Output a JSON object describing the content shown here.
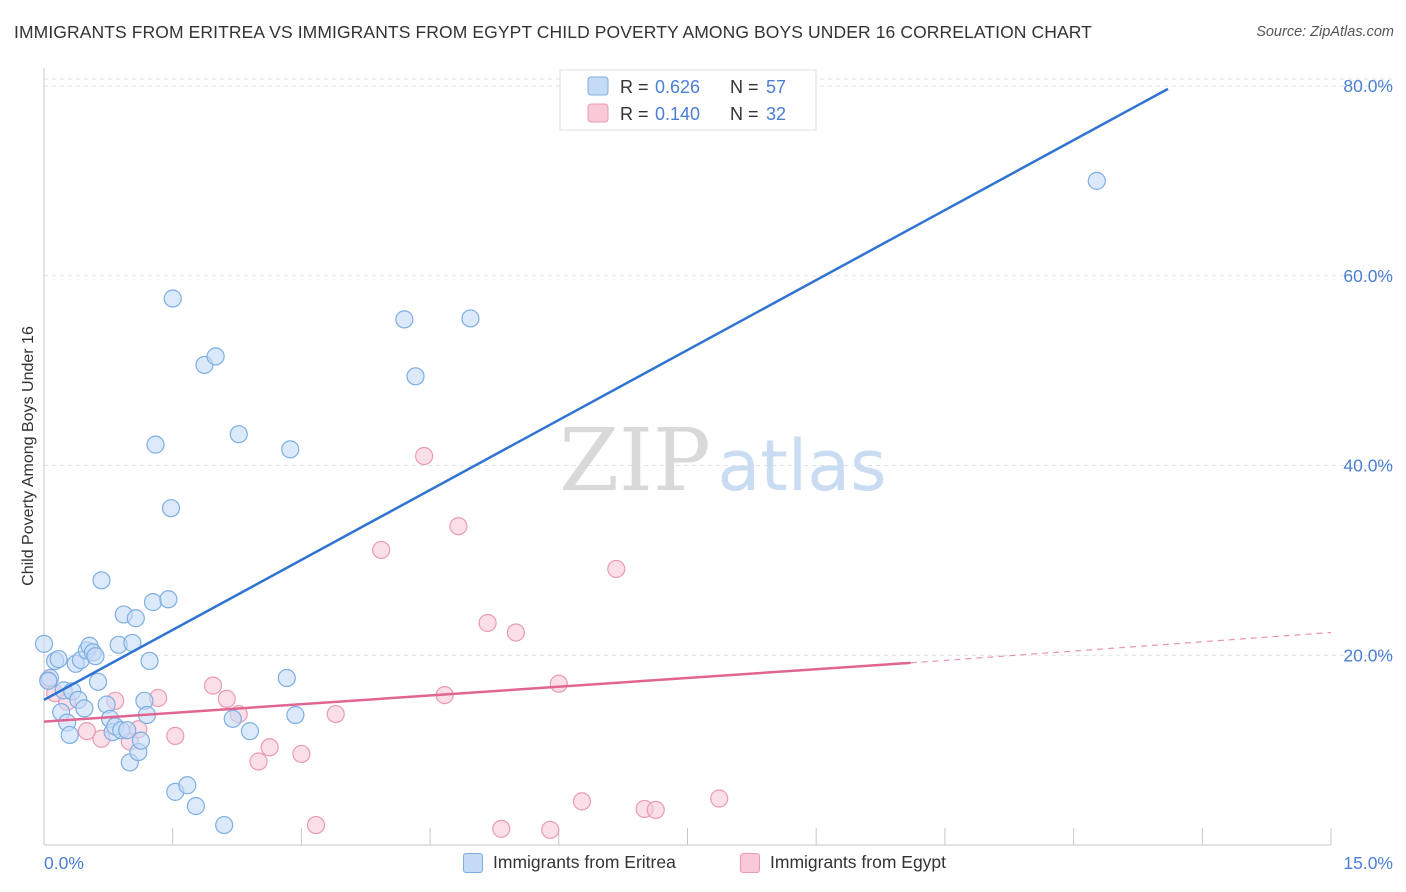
{
  "title": "IMMIGRANTS FROM ERITREA VS IMMIGRANTS FROM EGYPT CHILD POVERTY AMONG BOYS UNDER 16 CORRELATION CHART",
  "source": "Source: ZipAtlas.com",
  "watermark": {
    "zip": "ZIP",
    "atlas": "atlas"
  },
  "colors": {
    "eritrea_fill": "#c5daf6",
    "eritrea_stroke": "#7eaee2",
    "eritrea_line": "#2f74d0",
    "egypt_fill": "#f9c9d8",
    "egypt_stroke": "#e99bb4",
    "egypt_line": "#e06592",
    "value_text": "#4a7fd4",
    "grid": "#dde3ea"
  },
  "legend_top": {
    "rows": [
      {
        "series": "eritrea",
        "r_label": "R =",
        "r_value": "0.626",
        "n_label": "N =",
        "n_value": "57"
      },
      {
        "series": "egypt",
        "r_label": "R =",
        "r_value": "0.140",
        "n_label": "N =",
        "n_value": "32"
      }
    ]
  },
  "legend_bottom": [
    {
      "series": "eritrea",
      "label": "Immigrants from Eritrea"
    },
    {
      "series": "egypt",
      "label": "Immigrants from Egypt"
    }
  ],
  "chart_data": {
    "type": "scatter",
    "title": "IMMIGRANTS FROM ERITREA VS IMMIGRANTS FROM EGYPT CHILD POVERTY AMONG BOYS UNDER 16 CORRELATION CHART",
    "xlabel": "",
    "ylabel": "Child Poverty Among Boys Under 16",
    "xlim": [
      0,
      15
    ],
    "ylim": [
      0,
      80
    ],
    "x_tick_labels": [
      {
        "value": 0,
        "label": "0.0%"
      },
      {
        "value": 15,
        "label": "15.0%"
      }
    ],
    "y_tick_labels": [
      {
        "value": 20,
        "label": "20.0%"
      },
      {
        "value": 40,
        "label": "40.0%"
      },
      {
        "value": 60,
        "label": "60.0%"
      },
      {
        "value": 80,
        "label": "80.0%"
      }
    ],
    "grid": true,
    "series": [
      {
        "name": "Immigrants from Eritrea",
        "key": "eritrea",
        "R": 0.626,
        "N": 57,
        "trend": {
          "x": [
            0.0,
            13.1
          ],
          "y": [
            15.3,
            79.7
          ],
          "dashed_to": null
        },
        "points": [
          [
            0.0,
            21.2
          ],
          [
            0.07,
            17.6
          ],
          [
            0.13,
            19.4
          ],
          [
            0.17,
            19.6
          ],
          [
            0.2,
            14.0
          ],
          [
            0.23,
            16.3
          ],
          [
            0.27,
            12.9
          ],
          [
            0.3,
            11.6
          ],
          [
            0.33,
            16.2
          ],
          [
            0.37,
            19.1
          ],
          [
            0.4,
            15.3
          ],
          [
            0.43,
            19.5
          ],
          [
            0.47,
            14.4
          ],
          [
            0.5,
            20.5
          ],
          [
            0.53,
            21.0
          ],
          [
            0.57,
            20.3
          ],
          [
            0.6,
            19.9
          ],
          [
            0.63,
            17.2
          ],
          [
            0.67,
            27.9
          ],
          [
            0.73,
            14.8
          ],
          [
            0.77,
            13.3
          ],
          [
            0.8,
            11.9
          ],
          [
            0.83,
            12.5
          ],
          [
            0.87,
            21.1
          ],
          [
            0.9,
            12.1
          ],
          [
            0.93,
            24.3
          ],
          [
            0.97,
            12.1
          ],
          [
            1.0,
            8.7
          ],
          [
            1.03,
            21.3
          ],
          [
            1.07,
            23.9
          ],
          [
            1.1,
            9.8
          ],
          [
            1.13,
            11.0
          ],
          [
            1.17,
            15.2
          ],
          [
            1.2,
            13.7
          ],
          [
            1.23,
            19.4
          ],
          [
            1.27,
            25.6
          ],
          [
            1.3,
            42.2
          ],
          [
            1.45,
            25.9
          ],
          [
            1.48,
            35.5
          ],
          [
            1.5,
            57.6
          ],
          [
            1.53,
            5.6
          ],
          [
            1.67,
            6.3
          ],
          [
            1.77,
            4.1
          ],
          [
            1.87,
            50.6
          ],
          [
            2.0,
            51.5
          ],
          [
            2.1,
            2.1
          ],
          [
            2.2,
            13.3
          ],
          [
            2.27,
            43.3
          ],
          [
            2.4,
            12.0
          ],
          [
            2.83,
            17.6
          ],
          [
            2.87,
            41.7
          ],
          [
            2.93,
            13.7
          ],
          [
            4.2,
            55.4
          ],
          [
            4.33,
            49.4
          ],
          [
            4.97,
            55.5
          ],
          [
            12.27,
            70.0
          ],
          [
            0.05,
            17.3
          ]
        ]
      },
      {
        "name": "Immigrants from Egypt",
        "key": "egypt",
        "R": 0.14,
        "N": 32,
        "trend": {
          "x": [
            0.0,
            10.1
          ],
          "y": [
            13.0,
            19.2
          ],
          "dashed_to": [
            15.0,
            22.4
          ]
        },
        "points": [
          [
            0.05,
            17.4
          ],
          [
            0.13,
            16.0
          ],
          [
            0.27,
            15.1
          ],
          [
            0.5,
            12.0
          ],
          [
            0.67,
            11.2
          ],
          [
            0.83,
            15.2
          ],
          [
            1.0,
            10.9
          ],
          [
            1.1,
            12.2
          ],
          [
            1.33,
            15.5
          ],
          [
            1.53,
            11.5
          ],
          [
            1.97,
            16.8
          ],
          [
            2.13,
            15.4
          ],
          [
            2.27,
            13.8
          ],
          [
            2.5,
            8.8
          ],
          [
            2.63,
            10.3
          ],
          [
            3.0,
            9.6
          ],
          [
            3.17,
            2.1
          ],
          [
            3.4,
            13.8
          ],
          [
            3.93,
            31.1
          ],
          [
            4.43,
            41.0
          ],
          [
            4.67,
            15.8
          ],
          [
            4.83,
            33.6
          ],
          [
            5.17,
            23.4
          ],
          [
            5.33,
            1.7
          ],
          [
            5.5,
            22.4
          ],
          [
            5.9,
            1.6
          ],
          [
            6.0,
            17.0
          ],
          [
            6.27,
            4.6
          ],
          [
            6.67,
            29.1
          ],
          [
            7.0,
            3.8
          ],
          [
            7.13,
            3.7
          ],
          [
            7.87,
            4.9
          ]
        ]
      }
    ]
  }
}
